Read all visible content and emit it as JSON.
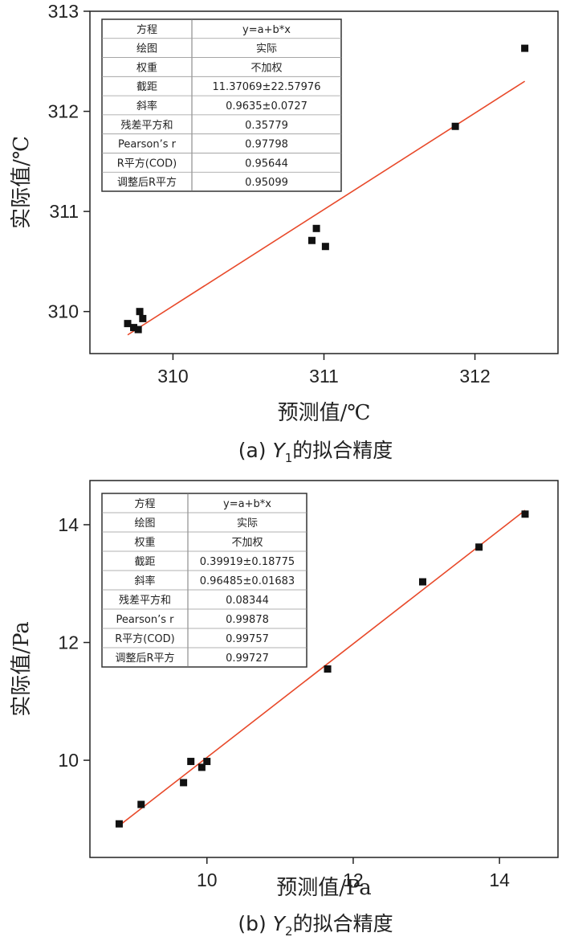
{
  "chart_data": [
    {
      "type": "scatter",
      "caption_prefix": "(a) ",
      "caption_var": "Y",
      "caption_sub": "1",
      "caption_suffix": "的拟合精度",
      "xlabel": "预测值/℃",
      "ylabel": "实际值/℃",
      "xlim": [
        309.45,
        312.55
      ],
      "ylim": [
        309.58,
        313.0
      ],
      "xticks": [
        310,
        311,
        312
      ],
      "yticks": [
        310,
        311,
        312,
        313
      ],
      "points": [
        {
          "x": 309.7,
          "y": 309.88
        },
        {
          "x": 309.74,
          "y": 309.84
        },
        {
          "x": 309.77,
          "y": 309.82
        },
        {
          "x": 309.78,
          "y": 310.0
        },
        {
          "x": 309.8,
          "y": 309.93
        },
        {
          "x": 310.92,
          "y": 310.71
        },
        {
          "x": 310.95,
          "y": 310.83
        },
        {
          "x": 311.01,
          "y": 310.65
        },
        {
          "x": 311.87,
          "y": 311.85
        },
        {
          "x": 312.33,
          "y": 312.63
        }
      ],
      "fit_line": {
        "intercept": 11.37069,
        "slope": 0.9635,
        "x_range": [
          309.7,
          312.33
        ],
        "color": "#e8492a"
      },
      "stats_table": {
        "rows": [
          {
            "label": "方程",
            "value": "y=a+b*x"
          },
          {
            "label": "绘图",
            "value": "实际"
          },
          {
            "label": "权重",
            "value": "不加权"
          },
          {
            "label": "截距",
            "value": "11.37069±22.57976"
          },
          {
            "label": "斜率",
            "value": "0.9635±0.0727"
          },
          {
            "label": "残差平方和",
            "value": "0.35779"
          },
          {
            "label": "Pearson’s r",
            "value": "0.97798"
          },
          {
            "label": "R平方(COD)",
            "value": "0.95644"
          },
          {
            "label": "调整后R平方",
            "value": "0.95099"
          }
        ]
      }
    },
    {
      "type": "scatter",
      "caption_prefix": "(b) ",
      "caption_var": "Y",
      "caption_sub": "2",
      "caption_suffix": "的拟合精度",
      "xlabel": "预测值/Pa",
      "ylabel": "实际值/Pa",
      "xlim": [
        8.4,
        14.8
      ],
      "ylim": [
        8.35,
        14.75
      ],
      "xticks": [
        10,
        12,
        14
      ],
      "yticks": [
        10,
        12,
        14
      ],
      "points": [
        {
          "x": 8.8,
          "y": 8.92
        },
        {
          "x": 9.1,
          "y": 9.25
        },
        {
          "x": 9.68,
          "y": 9.62
        },
        {
          "x": 9.78,
          "y": 9.98
        },
        {
          "x": 9.93,
          "y": 9.88
        },
        {
          "x": 10.0,
          "y": 9.98
        },
        {
          "x": 11.65,
          "y": 11.55
        },
        {
          "x": 12.95,
          "y": 13.03
        },
        {
          "x": 13.72,
          "y": 13.62
        },
        {
          "x": 14.35,
          "y": 14.18
        }
      ],
      "fit_line": {
        "intercept": 0.39919,
        "slope": 0.96485,
        "x_range": [
          8.8,
          14.35
        ],
        "color": "#e8492a"
      },
      "stats_table": {
        "rows": [
          {
            "label": "方程",
            "value": "y=a+b*x"
          },
          {
            "label": "绘图",
            "value": "实际"
          },
          {
            "label": "权重",
            "value": "不加权"
          },
          {
            "label": "截距",
            "value": "0.39919±0.18775"
          },
          {
            "label": "斜率",
            "value": "0.96485±0.01683"
          },
          {
            "label": "残差平方和",
            "value": "0.08344"
          },
          {
            "label": "Pearson’s r",
            "value": "0.99878"
          },
          {
            "label": "R平方(COD)",
            "value": "0.99757"
          },
          {
            "label": "调整后R平方",
            "value": "0.99727"
          }
        ]
      }
    }
  ]
}
